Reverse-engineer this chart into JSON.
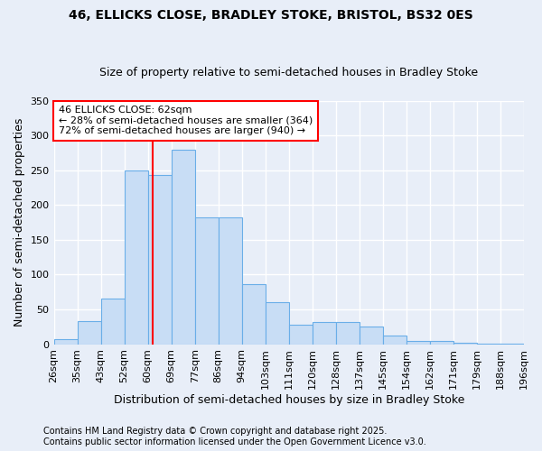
{
  "title1": "46, ELLICKS CLOSE, BRADLEY STOKE, BRISTOL, BS32 0ES",
  "title2": "Size of property relative to semi-detached houses in Bradley Stoke",
  "xlabel": "Distribution of semi-detached houses by size in Bradley Stoke",
  "ylabel": "Number of semi-detached properties",
  "bin_labels": [
    "26sqm",
    "35sqm",
    "43sqm",
    "52sqm",
    "60sqm",
    "69sqm",
    "77sqm",
    "86sqm",
    "94sqm",
    "103sqm",
    "111sqm",
    "120sqm",
    "128sqm",
    "137sqm",
    "145sqm",
    "154sqm",
    "162sqm",
    "171sqm",
    "179sqm",
    "188sqm",
    "196sqm"
  ],
  "bar_heights": [
    7,
    33,
    65,
    250,
    243,
    280,
    183,
    183,
    87,
    60,
    28,
    32,
    32,
    25,
    13,
    5,
    5,
    2,
    1,
    1
  ],
  "bar_color": "#c8ddf5",
  "bar_edge_color": "#6aaee8",
  "vline_color": "red",
  "vline_x_idx": 4.22,
  "annotation_title": "46 ELLICKS CLOSE: 62sqm",
  "annotation_line1": "← 28% of semi-detached houses are smaller (364)",
  "annotation_line2": "72% of semi-detached houses are larger (940) →",
  "footnote1": "Contains HM Land Registry data © Crown copyright and database right 2025.",
  "footnote2": "Contains public sector information licensed under the Open Government Licence v3.0.",
  "ylim": [
    0,
    350
  ],
  "yticks": [
    0,
    50,
    100,
    150,
    200,
    250,
    300,
    350
  ],
  "bg_color": "#e8eef8",
  "plot_bg_color": "#e8eef8",
  "grid_color": "white",
  "title_fontsize": 10,
  "subtitle_fontsize": 9,
  "ylabel_fontsize": 9,
  "xlabel_fontsize": 9,
  "tick_fontsize": 8,
  "ann_fontsize": 8,
  "footnote_fontsize": 7
}
